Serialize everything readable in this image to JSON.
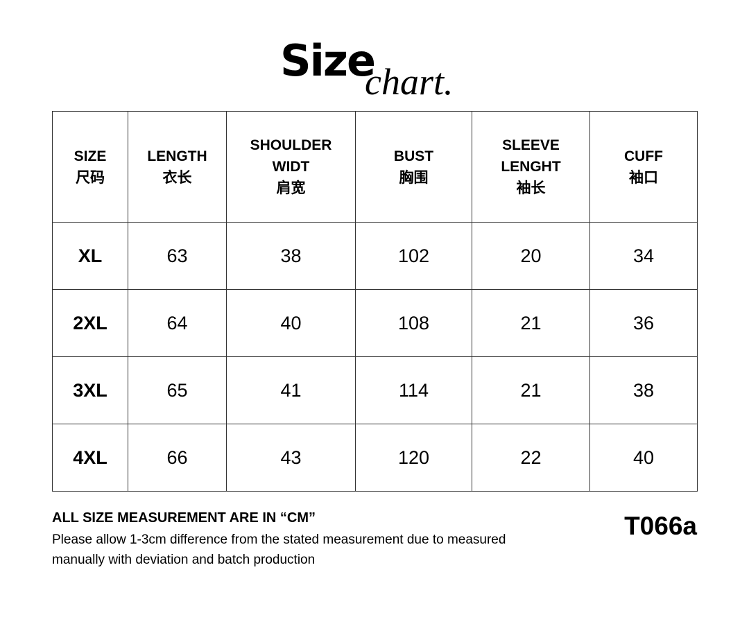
{
  "title": {
    "main": "Size",
    "sub": "chart."
  },
  "headers": [
    {
      "en": "SIZE",
      "cn": "尺码"
    },
    {
      "en": "LENGTH",
      "cn": "衣长"
    },
    {
      "en": "SHOULDER WIDT",
      "cn": "肩宽"
    },
    {
      "en": "BUST",
      "cn": "胸围"
    },
    {
      "en": "SLEEVE LENGHT",
      "cn": "袖长"
    },
    {
      "en": "CUFF",
      "cn": "袖口"
    }
  ],
  "rows": [
    [
      "XL",
      "63",
      "38",
      "102",
      "20",
      "34"
    ],
    [
      "2XL",
      "64",
      "40",
      "108",
      "21",
      "36"
    ],
    [
      "3XL",
      "65",
      "41",
      "114",
      "21",
      "38"
    ],
    [
      "4XL",
      "66",
      "43",
      "120",
      "22",
      "40"
    ]
  ],
  "notes": {
    "unit": "ALL SIZE MEASUREMENT ARE IN  “CM”",
    "disclaimer": "Please allow 1-3cm difference from the stated measurement due to measured manually with deviation and batch production"
  },
  "product_code": "T066a"
}
